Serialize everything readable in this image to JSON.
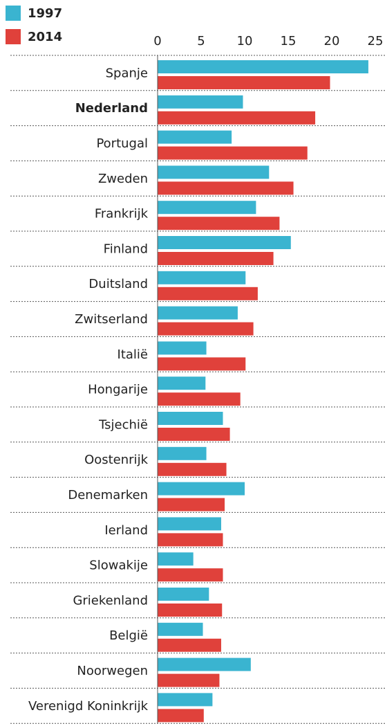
{
  "chart_data": {
    "type": "bar",
    "orientation": "horizontal",
    "categories": [
      "Spanje",
      "Nederland",
      "Portugal",
      "Zweden",
      "Frankrijk",
      "Finland",
      "Duitsland",
      "Zwitserland",
      "Italië",
      "Hongarije",
      "Tsjechië",
      "Oostenrijk",
      "Denemarken",
      "Ierland",
      "Slowakije",
      "Griekenland",
      "België",
      "Noorwegen",
      "Verenigd Koninkrijk"
    ],
    "series": [
      {
        "name": "1997",
        "color": "#3ab4d0",
        "values": [
          24.2,
          9.8,
          8.5,
          12.8,
          11.3,
          15.3,
          10.1,
          9.2,
          5.6,
          5.5,
          7.5,
          5.6,
          10.0,
          7.3,
          4.1,
          5.9,
          5.2,
          10.7,
          6.3
        ]
      },
      {
        "name": "2014",
        "color": "#e0413b",
        "values": [
          19.8,
          18.1,
          17.2,
          15.6,
          14.0,
          13.3,
          11.5,
          11.0,
          10.1,
          9.5,
          8.3,
          7.9,
          7.7,
          7.5,
          7.5,
          7.4,
          7.3,
          7.1,
          5.3
        ]
      }
    ],
    "xlim": [
      0,
      25
    ],
    "xticks": [
      0,
      5,
      10,
      15,
      20,
      25
    ],
    "highlight": "Nederland",
    "legend": "top-left"
  }
}
